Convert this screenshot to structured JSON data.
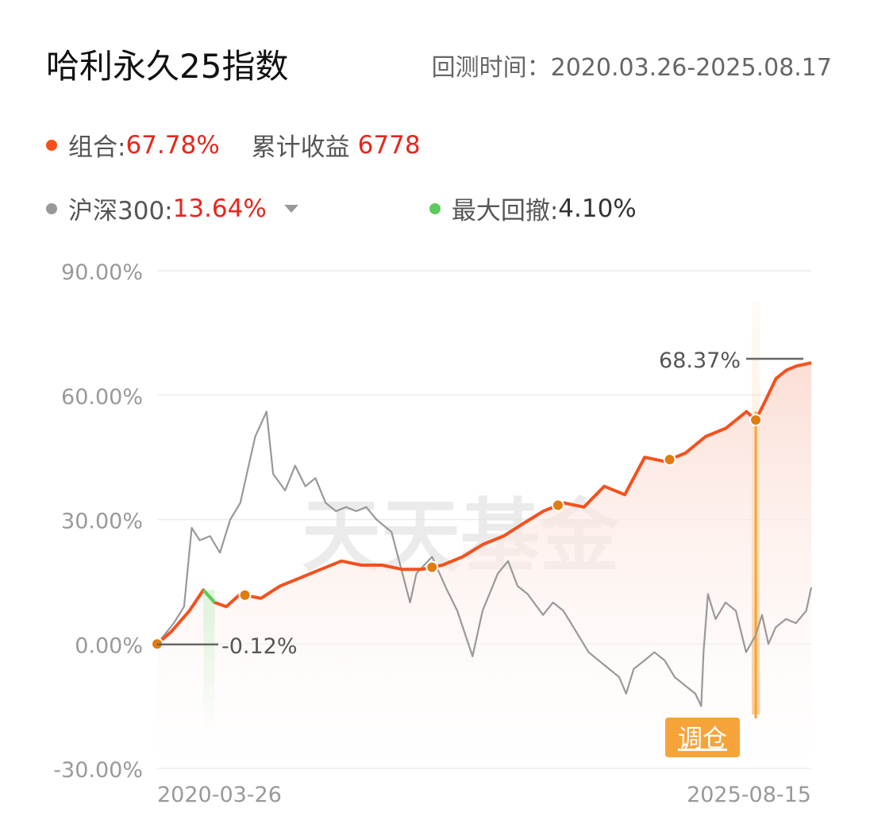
{
  "header": {
    "title": "哈利永久25指数",
    "period_label": "回测时间：",
    "period_value": "2020.03.26-2025.08.17"
  },
  "legend": {
    "portfolio_label": "组合:",
    "portfolio_value": "67.78%",
    "cumulative_label": "累计收益",
    "cumulative_value": "6778",
    "benchmark_label": "沪深300:",
    "benchmark_value": "13.64%",
    "drawdown_label": "最大回撤:",
    "drawdown_value": "4.10%"
  },
  "colors": {
    "portfolio": "#f4511e",
    "benchmark": "#999999",
    "drawdown": "#5ccb5c",
    "rebalance_marker": "#e07d12",
    "rebalance_button": "#f6a33a",
    "red_text": "#e8251c"
  },
  "watermark": "天天基金",
  "rebalance_button_label": "调仓",
  "annotations": {
    "max_label": "68.37%",
    "min_label": "-0.12%"
  },
  "chart_data": {
    "type": "line",
    "y_ticks": [
      "90.00%",
      "60.00%",
      "30.00%",
      "0.00%",
      "-30.00%"
    ],
    "x_tick_labels": [
      "2020-03-26",
      "2025-08-15"
    ],
    "ylim": [
      -30,
      90
    ],
    "xlim": [
      "2020-03-26",
      "2025-08-15"
    ],
    "grid": true,
    "series": [
      {
        "name": "组合",
        "x": [
          "2020-03-26",
          "2020-05-08",
          "2020-07-01",
          "2020-08-12",
          "2020-09-15",
          "2020-10-20",
          "2020-12-01",
          "2021-02-01",
          "2021-04-01",
          "2021-06-01",
          "2021-08-01",
          "2021-10-01",
          "2021-12-01",
          "2022-02-01",
          "2022-04-01",
          "2022-06-01",
          "2022-08-01",
          "2022-10-01",
          "2022-12-01",
          "2023-02-01",
          "2023-04-01",
          "2023-06-01",
          "2023-08-01",
          "2023-10-01",
          "2023-12-01",
          "2024-02-01",
          "2024-04-01",
          "2024-06-01",
          "2024-08-01",
          "2024-10-01",
          "2024-12-01",
          "2025-02-01",
          "2025-03-01",
          "2025-04-01",
          "2025-05-01",
          "2025-06-01",
          "2025-07-01",
          "2025-08-15"
        ],
        "values": [
          0,
          3,
          8,
          13,
          10,
          9,
          12,
          11,
          14,
          16,
          18,
          20,
          19,
          19,
          18,
          18,
          19,
          21,
          24,
          26,
          29,
          32,
          34,
          33,
          38,
          36,
          45,
          44,
          46,
          50,
          52,
          56,
          54,
          59,
          64,
          66,
          67,
          67.78
        ]
      },
      {
        "name": "沪深300",
        "x": [
          "2020-03-26",
          "2020-04-15",
          "2020-05-15",
          "2020-06-15",
          "2020-07-08",
          "2020-08-01",
          "2020-09-01",
          "2020-10-01",
          "2020-11-01",
          "2020-12-01",
          "2021-01-15",
          "2021-02-18",
          "2021-03-10",
          "2021-04-15",
          "2021-05-15",
          "2021-06-15",
          "2021-07-15",
          "2021-08-15",
          "2021-09-15",
          "2021-10-15",
          "2021-11-15",
          "2021-12-15",
          "2022-01-15",
          "2022-03-01",
          "2022-04-26",
          "2022-05-15",
          "2022-07-01",
          "2022-08-15",
          "2022-09-15",
          "2022-10-31",
          "2022-11-30",
          "2023-01-15",
          "2023-02-15",
          "2023-03-15",
          "2023-04-15",
          "2023-05-31",
          "2023-06-30",
          "2023-07-31",
          "2023-08-31",
          "2023-10-15",
          "2023-11-30",
          "2024-01-15",
          "2024-02-05",
          "2024-02-28",
          "2024-03-31",
          "2024-04-30",
          "2024-05-31",
          "2024-06-30",
          "2024-07-31",
          "2024-08-31",
          "2024-09-18",
          "2024-09-25",
          "2024-10-08",
          "2024-10-31",
          "2024-11-30",
          "2024-12-31",
          "2025-01-31",
          "2025-02-28",
          "2025-03-20",
          "2025-04-08",
          "2025-04-30",
          "2025-05-31",
          "2025-06-30",
          "2025-07-31",
          "2025-08-15"
        ],
        "values": [
          0,
          2,
          5,
          9,
          28,
          25,
          26,
          22,
          30,
          34,
          50,
          56,
          41,
          37,
          43,
          38,
          40,
          34,
          32,
          33,
          32,
          33,
          30,
          27,
          10,
          17,
          21,
          13,
          8,
          -3,
          8,
          17,
          20,
          14,
          12,
          7,
          10,
          8,
          4,
          -2,
          -5,
          -8,
          -12,
          -6,
          -4,
          -2,
          -4,
          -8,
          -10,
          -12,
          -15,
          -2,
          12,
          6,
          10,
          8,
          -2,
          2,
          7,
          0,
          4,
          6,
          5,
          8,
          13.64
        ]
      }
    ],
    "rebalance_dates": [
      "2020-03-26",
      "2020-12-15",
      "2022-07-01",
      "2023-07-15",
      "2024-06-15",
      "2025-03-01"
    ]
  }
}
